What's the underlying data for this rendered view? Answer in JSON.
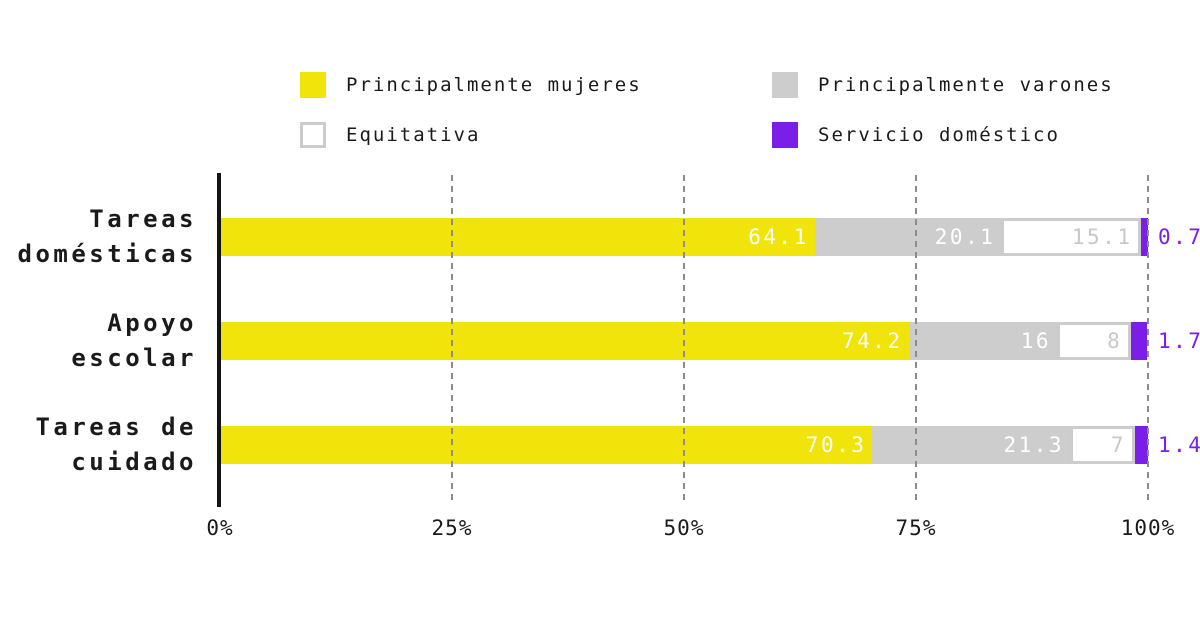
{
  "colors": {
    "mujeres": "#F0E40A",
    "varones": "#CDCDCD",
    "equitativa_fill": "#FFFFFF",
    "equitativa_border": "#CCCCCC",
    "equitativa_text": "#C8C8C8",
    "domestico": "#7B1FE8",
    "bar_value_text": "#FFFFFF",
    "axis": "#141414",
    "gridline": "#8C8C8C",
    "text": "#1A1A1A"
  },
  "legend": {
    "items": [
      {
        "key": "mujeres",
        "label": "Principalmente mujeres"
      },
      {
        "key": "varones",
        "label": "Principalmente varones"
      },
      {
        "key": "equitativa",
        "label": "Equitativa"
      },
      {
        "key": "domestico",
        "label": "Servicio doméstico"
      }
    ]
  },
  "x_axis": {
    "ticks": [
      {
        "label": "0%",
        "value": 0
      },
      {
        "label": "25%",
        "value": 25
      },
      {
        "label": "50%",
        "value": 50
      },
      {
        "label": "75%",
        "value": 75
      },
      {
        "label": "100%",
        "value": 100
      }
    ]
  },
  "chart_data": {
    "type": "bar",
    "orientation": "horizontal",
    "stacked": true,
    "unit": "%",
    "xlim": [
      0,
      100
    ],
    "grid": "vertical-dashed",
    "legend_position": "top",
    "categories": [
      "Tareas domésticas",
      "Apoyo escolar",
      "Tareas de cuidado"
    ],
    "category_lines": [
      [
        "Tareas",
        "domésticas"
      ],
      [
        "Apoyo",
        "escolar"
      ],
      [
        "Tareas de",
        "cuidado"
      ]
    ],
    "series": [
      {
        "key": "mujeres",
        "name": "Principalmente mujeres",
        "values": [
          64.1,
          74.2,
          70.3
        ],
        "labels": [
          "64.1",
          "74.2",
          "70.3"
        ],
        "label_position": "inside"
      },
      {
        "key": "varones",
        "name": "Principalmente varones",
        "values": [
          20.1,
          16,
          21.3
        ],
        "labels": [
          "20.1",
          "16",
          "21.3"
        ],
        "label_position": "inside"
      },
      {
        "key": "equitativa",
        "name": "Equitativa",
        "values": [
          15.1,
          8,
          7
        ],
        "labels": [
          "15.1",
          "8",
          "7"
        ],
        "label_position": "inside"
      },
      {
        "key": "domestico",
        "name": "Servicio doméstico",
        "values": [
          0.7,
          1.7,
          1.4
        ],
        "labels": [
          "0.7",
          "1.7",
          "1.4"
        ],
        "label_position": "outside"
      }
    ]
  }
}
